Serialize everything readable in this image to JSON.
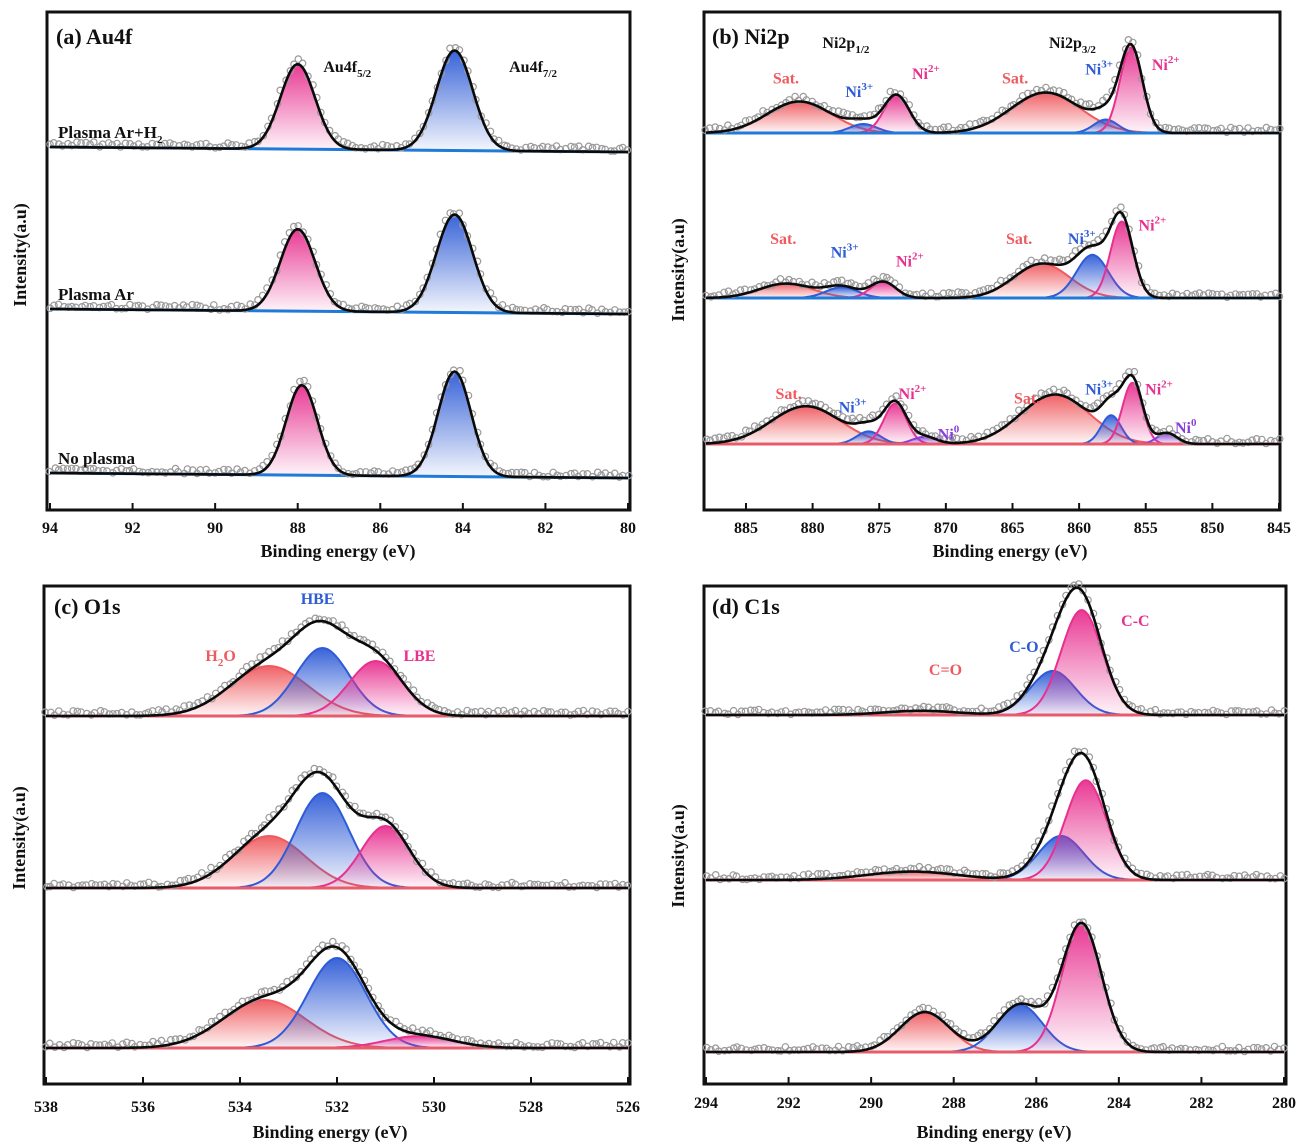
{
  "colors": {
    "pink": "#e8308f",
    "blue": "#2e5bd6",
    "salmon": "#ef5a5f",
    "purple": "#8a3fd9",
    "frame": "#111111",
    "envelope": "#0a0a0a",
    "rawdata": "#9a9a9a",
    "baseline_blue": "#1f7ad8",
    "baseline_red": "#e65c6a"
  },
  "chart_data": [
    {
      "type": "line",
      "panel": "a",
      "title": "(a) Au4f",
      "xlabel": "Binding energy (eV)",
      "ylabel": "Intensity(a.u)",
      "xlim": [
        94,
        80
      ],
      "xticks": [
        94,
        92,
        90,
        88,
        86,
        84,
        82,
        80
      ],
      "xtick_labels": [
        "94",
        "92",
        "90",
        "88",
        "86",
        "84",
        "82",
        "80"
      ],
      "peak_labels": [
        {
          "base": "Au4f",
          "sub": "5/2",
          "sup": "",
          "x": 86.8,
          "row": 0,
          "color": "frame"
        },
        {
          "base": "Au4f",
          "sub": "7/2",
          "sup": "",
          "x": 82.3,
          "row": 0,
          "color": "frame"
        }
      ],
      "series": [
        {
          "name": "Plasma Ar+H2",
          "label_base": "Plasma Ar+H",
          "label_sub": "2",
          "baseline": [
            0.05,
            0.0
          ],
          "baseline_color": "baseline_blue",
          "components": [
            {
              "name": "Au4f5/2",
              "center": 88.0,
              "amp": 0.85,
              "sigma": 0.42,
              "color": "pink"
            },
            {
              "name": "Au4f7/2",
              "center": 84.2,
              "amp": 1.0,
              "sigma": 0.44,
              "color": "blue"
            }
          ]
        },
        {
          "name": "Plasma Ar",
          "label_base": "Plasma Ar",
          "label_sub": "",
          "baseline": [
            0.05,
            0.0
          ],
          "baseline_color": "baseline_blue",
          "components": [
            {
              "name": "Au4f5/2",
              "center": 88.0,
              "amp": 0.82,
              "sigma": 0.42,
              "color": "pink"
            },
            {
              "name": "Au4f7/2",
              "center": 84.2,
              "amp": 0.98,
              "sigma": 0.44,
              "color": "blue"
            }
          ]
        },
        {
          "name": "No plasma",
          "label_base": "No plasma",
          "label_sub": "",
          "baseline": [
            0.05,
            0.0
          ],
          "baseline_color": "baseline_blue",
          "components": [
            {
              "name": "Au4f5/2",
              "center": 87.9,
              "amp": 0.9,
              "sigma": 0.38,
              "color": "pink"
            },
            {
              "name": "Au4f7/2",
              "center": 84.2,
              "amp": 1.05,
              "sigma": 0.4,
              "color": "blue"
            }
          ]
        }
      ]
    },
    {
      "type": "line",
      "panel": "b",
      "title": "(b) Ni2p",
      "xlabel": "Binding energy (eV)",
      "ylabel": "Intensity(a.u)",
      "xlim": [
        888,
        845
      ],
      "xticks": [
        885,
        880,
        875,
        870,
        865,
        860,
        855,
        850,
        845
      ],
      "xtick_labels": [
        "885",
        "880",
        "875",
        "870",
        "865",
        "860",
        "855",
        "850",
        "845"
      ],
      "peak_labels": [
        {
          "base": "Ni2p",
          "sub": "1/2",
          "sup": "",
          "x": 877.5,
          "row": -1,
          "color": "frame"
        },
        {
          "base": "Ni2p",
          "sub": "3/2",
          "sup": "",
          "x": 860.5,
          "row": -1,
          "color": "frame"
        },
        {
          "base": "Sat.",
          "sub": "",
          "sup": "",
          "x": 882.0,
          "row": 0,
          "dy": -0.55,
          "color": "salmon"
        },
        {
          "base": "Ni",
          "sub": "",
          "sup": "3+",
          "x": 876.5,
          "row": 0,
          "dy": -0.4,
          "color": "blue"
        },
        {
          "base": "Ni",
          "sub": "",
          "sup": "2+",
          "x": 871.5,
          "row": 0,
          "dy": -0.6,
          "color": "pink"
        },
        {
          "base": "Sat.",
          "sub": "",
          "sup": "",
          "x": 864.8,
          "row": 0,
          "dy": -0.55,
          "color": "salmon"
        },
        {
          "base": "Ni",
          "sub": "",
          "sup": "3+",
          "x": 858.5,
          "row": 0,
          "dy": -0.65,
          "color": "blue"
        },
        {
          "base": "Ni",
          "sub": "",
          "sup": "2+",
          "x": 853.5,
          "row": 0,
          "dy": -0.7,
          "color": "pink"
        },
        {
          "base": "Sat.",
          "sub": "",
          "sup": "",
          "x": 882.2,
          "row": 1,
          "dy": -0.6,
          "color": "salmon"
        },
        {
          "base": "Ni",
          "sub": "",
          "sup": "3+",
          "x": 877.6,
          "row": 1,
          "dy": -0.45,
          "color": "blue"
        },
        {
          "base": "Ni",
          "sub": "",
          "sup": "2+",
          "x": 872.7,
          "row": 1,
          "dy": -0.35,
          "color": "pink"
        },
        {
          "base": "Sat.",
          "sub": "",
          "sup": "",
          "x": 864.5,
          "row": 1,
          "dy": -0.6,
          "color": "salmon"
        },
        {
          "base": "Ni",
          "sub": "",
          "sup": "3+",
          "x": 859.8,
          "row": 1,
          "dy": -0.6,
          "color": "blue"
        },
        {
          "base": "Ni",
          "sub": "",
          "sup": "2+",
          "x": 854.5,
          "row": 1,
          "dy": -0.75,
          "color": "pink"
        },
        {
          "base": "Sat.",
          "sub": "",
          "sup": "",
          "x": 881.8,
          "row": 2,
          "dy": -0.5,
          "color": "salmon"
        },
        {
          "base": "Ni",
          "sub": "",
          "sup": "3+",
          "x": 877.0,
          "row": 2,
          "dy": -0.35,
          "color": "blue"
        },
        {
          "base": "Ni",
          "sub": "",
          "sup": "2+",
          "x": 872.5,
          "row": 2,
          "dy": -0.5,
          "color": "pink"
        },
        {
          "base": "Ni",
          "sub": "",
          "sup": "0",
          "x": 869.8,
          "row": 2,
          "dy": -0.05,
          "color": "purple"
        },
        {
          "base": "Sat.",
          "sub": "",
          "sup": "",
          "x": 863.9,
          "row": 2,
          "dy": -0.45,
          "color": "salmon"
        },
        {
          "base": "Ni",
          "sub": "",
          "sup": "3+",
          "x": 858.5,
          "row": 2,
          "dy": -0.55,
          "color": "blue"
        },
        {
          "base": "Ni",
          "sub": "",
          "sup": "2+",
          "x": 854.0,
          "row": 2,
          "dy": -0.55,
          "color": "pink"
        },
        {
          "base": "Ni",
          "sub": "",
          "sup": "0",
          "x": 852.0,
          "row": 2,
          "dy": -0.12,
          "color": "purple"
        }
      ],
      "series": [
        {
          "name": "Plasma Ar+H2",
          "baseline": [
            0.0,
            0.0
          ],
          "baseline_color": "baseline_blue",
          "components": [
            {
              "name": "Sat.",
              "center": 881.0,
              "amp": 0.35,
              "sigma": 2.4,
              "color": "salmon"
            },
            {
              "name": "Ni3+",
              "center": 876.2,
              "amp": 0.1,
              "sigma": 1.0,
              "color": "blue"
            },
            {
              "name": "Ni2+",
              "center": 873.7,
              "amp": 0.42,
              "sigma": 0.95,
              "color": "pink"
            },
            {
              "name": "Sat.",
              "center": 862.5,
              "amp": 0.45,
              "sigma": 2.6,
              "color": "salmon"
            },
            {
              "name": "Ni3+",
              "center": 858.0,
              "amp": 0.15,
              "sigma": 0.9,
              "color": "blue"
            },
            {
              "name": "Ni2+",
              "center": 856.1,
              "amp": 0.95,
              "sigma": 0.85,
              "color": "pink"
            }
          ]
        },
        {
          "name": "Plasma Ar",
          "baseline": [
            0.0,
            0.0
          ],
          "baseline_color": "baseline_blue",
          "components": [
            {
              "name": "Sat.",
              "center": 882.0,
              "amp": 0.16,
              "sigma": 2.0,
              "color": "salmon"
            },
            {
              "name": "Ni3+",
              "center": 877.8,
              "amp": 0.12,
              "sigma": 1.2,
              "color": "blue"
            },
            {
              "name": "Ni2+",
              "center": 874.7,
              "amp": 0.18,
              "sigma": 0.95,
              "color": "pink"
            },
            {
              "name": "Sat.",
              "center": 862.8,
              "amp": 0.38,
              "sigma": 2.1,
              "color": "salmon"
            },
            {
              "name": "Ni3+",
              "center": 859.0,
              "amp": 0.48,
              "sigma": 1.2,
              "color": "blue"
            },
            {
              "name": "Ni2+",
              "center": 856.8,
              "amp": 0.85,
              "sigma": 0.85,
              "color": "pink"
            }
          ]
        },
        {
          "name": "No plasma",
          "baseline": [
            0.0,
            0.0
          ],
          "baseline_color": "baseline_red",
          "components": [
            {
              "name": "Sat.",
              "center": 880.5,
              "amp": 0.42,
              "sigma": 2.6,
              "color": "salmon"
            },
            {
              "name": "Ni3+",
              "center": 875.8,
              "amp": 0.14,
              "sigma": 0.9,
              "color": "blue"
            },
            {
              "name": "Ni2+",
              "center": 873.8,
              "amp": 0.45,
              "sigma": 0.85,
              "color": "pink"
            },
            {
              "name": "Ni0",
              "center": 871.6,
              "amp": 0.08,
              "sigma": 0.9,
              "color": "purple"
            },
            {
              "name": "Sat.",
              "center": 861.8,
              "amp": 0.55,
              "sigma": 2.6,
              "color": "salmon"
            },
            {
              "name": "Ni3+",
              "center": 857.6,
              "amp": 0.32,
              "sigma": 0.75,
              "color": "blue"
            },
            {
              "name": "Ni2+",
              "center": 856.0,
              "amp": 0.68,
              "sigma": 0.75,
              "color": "pink"
            },
            {
              "name": "Ni0",
              "center": 853.4,
              "amp": 0.12,
              "sigma": 0.75,
              "color": "purple"
            }
          ]
        }
      ]
    },
    {
      "type": "line",
      "panel": "c",
      "title": "(c) O1s",
      "xlabel": "Binding energy (eV)",
      "ylabel": "Intensity(a.u)",
      "xlim": [
        538,
        526
      ],
      "xticks": [
        538,
        536,
        534,
        532,
        530,
        528,
        526
      ],
      "xtick_labels": [
        "538",
        "536",
        "534",
        "532",
        "530",
        "528",
        "526"
      ],
      "peak_labels": [
        {
          "base": "H",
          "sub": "2",
          "sup": "",
          "tail": "O",
          "x": 534.4,
          "row": 0,
          "dy": -0.55,
          "color": "salmon"
        },
        {
          "base": "HBE",
          "sub": "",
          "sup": "",
          "x": 532.4,
          "row": 0,
          "dy": -1.12,
          "color": "blue"
        },
        {
          "base": "LBE",
          "sub": "",
          "sup": "",
          "x": 530.3,
          "row": 0,
          "dy": -0.55,
          "color": "pink"
        }
      ],
      "series": [
        {
          "name": "Plasma Ar+H2",
          "baseline": [
            0.0,
            0.0
          ],
          "baseline_color": "baseline_red",
          "components": [
            {
              "name": "H2O",
              "center": 533.4,
              "amp": 0.5,
              "sigma": 0.8,
              "color": "salmon"
            },
            {
              "name": "HBE",
              "center": 532.3,
              "amp": 0.68,
              "sigma": 0.55,
              "color": "blue"
            },
            {
              "name": "LBE",
              "center": 531.2,
              "amp": 0.55,
              "sigma": 0.55,
              "color": "pink"
            }
          ]
        },
        {
          "name": "Plasma Ar",
          "baseline": [
            0.0,
            0.0
          ],
          "baseline_color": "baseline_red",
          "components": [
            {
              "name": "H2O",
              "center": 533.4,
              "amp": 0.52,
              "sigma": 0.75,
              "color": "salmon"
            },
            {
              "name": "HBE",
              "center": 532.3,
              "amp": 0.95,
              "sigma": 0.55,
              "color": "blue"
            },
            {
              "name": "LBE",
              "center": 531.0,
              "amp": 0.62,
              "sigma": 0.5,
              "color": "pink"
            }
          ]
        },
        {
          "name": "No plasma",
          "baseline": [
            0.0,
            0.0
          ],
          "baseline_color": "baseline_red",
          "components": [
            {
              "name": "H2O",
              "center": 533.5,
              "amp": 0.48,
              "sigma": 0.85,
              "color": "salmon"
            },
            {
              "name": "HBE",
              "center": 532.0,
              "amp": 0.9,
              "sigma": 0.6,
              "color": "blue"
            },
            {
              "name": "LBE",
              "center": 530.3,
              "amp": 0.12,
              "sigma": 0.7,
              "color": "pink"
            }
          ]
        }
      ]
    },
    {
      "type": "line",
      "panel": "d",
      "title": "(d) C1s",
      "xlabel": "Binding energy (eV)",
      "ylabel": "Intensity(a.u)",
      "xlim": [
        294,
        280
      ],
      "xticks": [
        294,
        292,
        290,
        288,
        286,
        284,
        282,
        280
      ],
      "xtick_labels": [
        "294",
        "292",
        "290",
        "288",
        "286",
        "284",
        "282",
        "280"
      ],
      "peak_labels": [
        {
          "base": "C=O",
          "sub": "",
          "sup": "",
          "x": 288.2,
          "row": 0,
          "dy": -0.38,
          "color": "salmon"
        },
        {
          "base": "C-O",
          "sub": "",
          "sup": "",
          "x": 286.3,
          "row": 0,
          "dy": -0.6,
          "color": "blue"
        },
        {
          "base": "C-C",
          "sub": "",
          "sup": "",
          "x": 283.6,
          "row": 0,
          "dy": -0.85,
          "color": "pink"
        }
      ],
      "series": [
        {
          "name": "Plasma Ar+H2",
          "baseline": [
            0.0,
            0.0
          ],
          "baseline_color": "baseline_red",
          "components": [
            {
              "name": "C=O",
              "center": 288.8,
              "amp": 0.04,
              "sigma": 0.9,
              "color": "salmon"
            },
            {
              "name": "C-O",
              "center": 285.6,
              "amp": 0.42,
              "sigma": 0.55,
              "color": "blue"
            },
            {
              "name": "C-C",
              "center": 284.9,
              "amp": 1.0,
              "sigma": 0.5,
              "color": "pink"
            }
          ]
        },
        {
          "name": "Plasma Ar",
          "baseline": [
            0.0,
            0.0
          ],
          "baseline_color": "baseline_red",
          "components": [
            {
              "name": "C=O",
              "center": 289.0,
              "amp": 0.08,
              "sigma": 1.1,
              "color": "salmon"
            },
            {
              "name": "C-O",
              "center": 285.4,
              "amp": 0.42,
              "sigma": 0.55,
              "color": "blue"
            },
            {
              "name": "C-C",
              "center": 284.8,
              "amp": 0.95,
              "sigma": 0.5,
              "color": "pink"
            }
          ]
        },
        {
          "name": "No plasma",
          "baseline": [
            0.0,
            0.0
          ],
          "baseline_color": "baseline_red",
          "components": [
            {
              "name": "C=O",
              "center": 288.7,
              "amp": 0.38,
              "sigma": 0.6,
              "color": "salmon"
            },
            {
              "name": "C-O",
              "center": 286.4,
              "amp": 0.45,
              "sigma": 0.55,
              "color": "blue"
            },
            {
              "name": "C-C",
              "center": 284.9,
              "amp": 1.22,
              "sigma": 0.48,
              "color": "pink"
            }
          ]
        }
      ]
    }
  ]
}
